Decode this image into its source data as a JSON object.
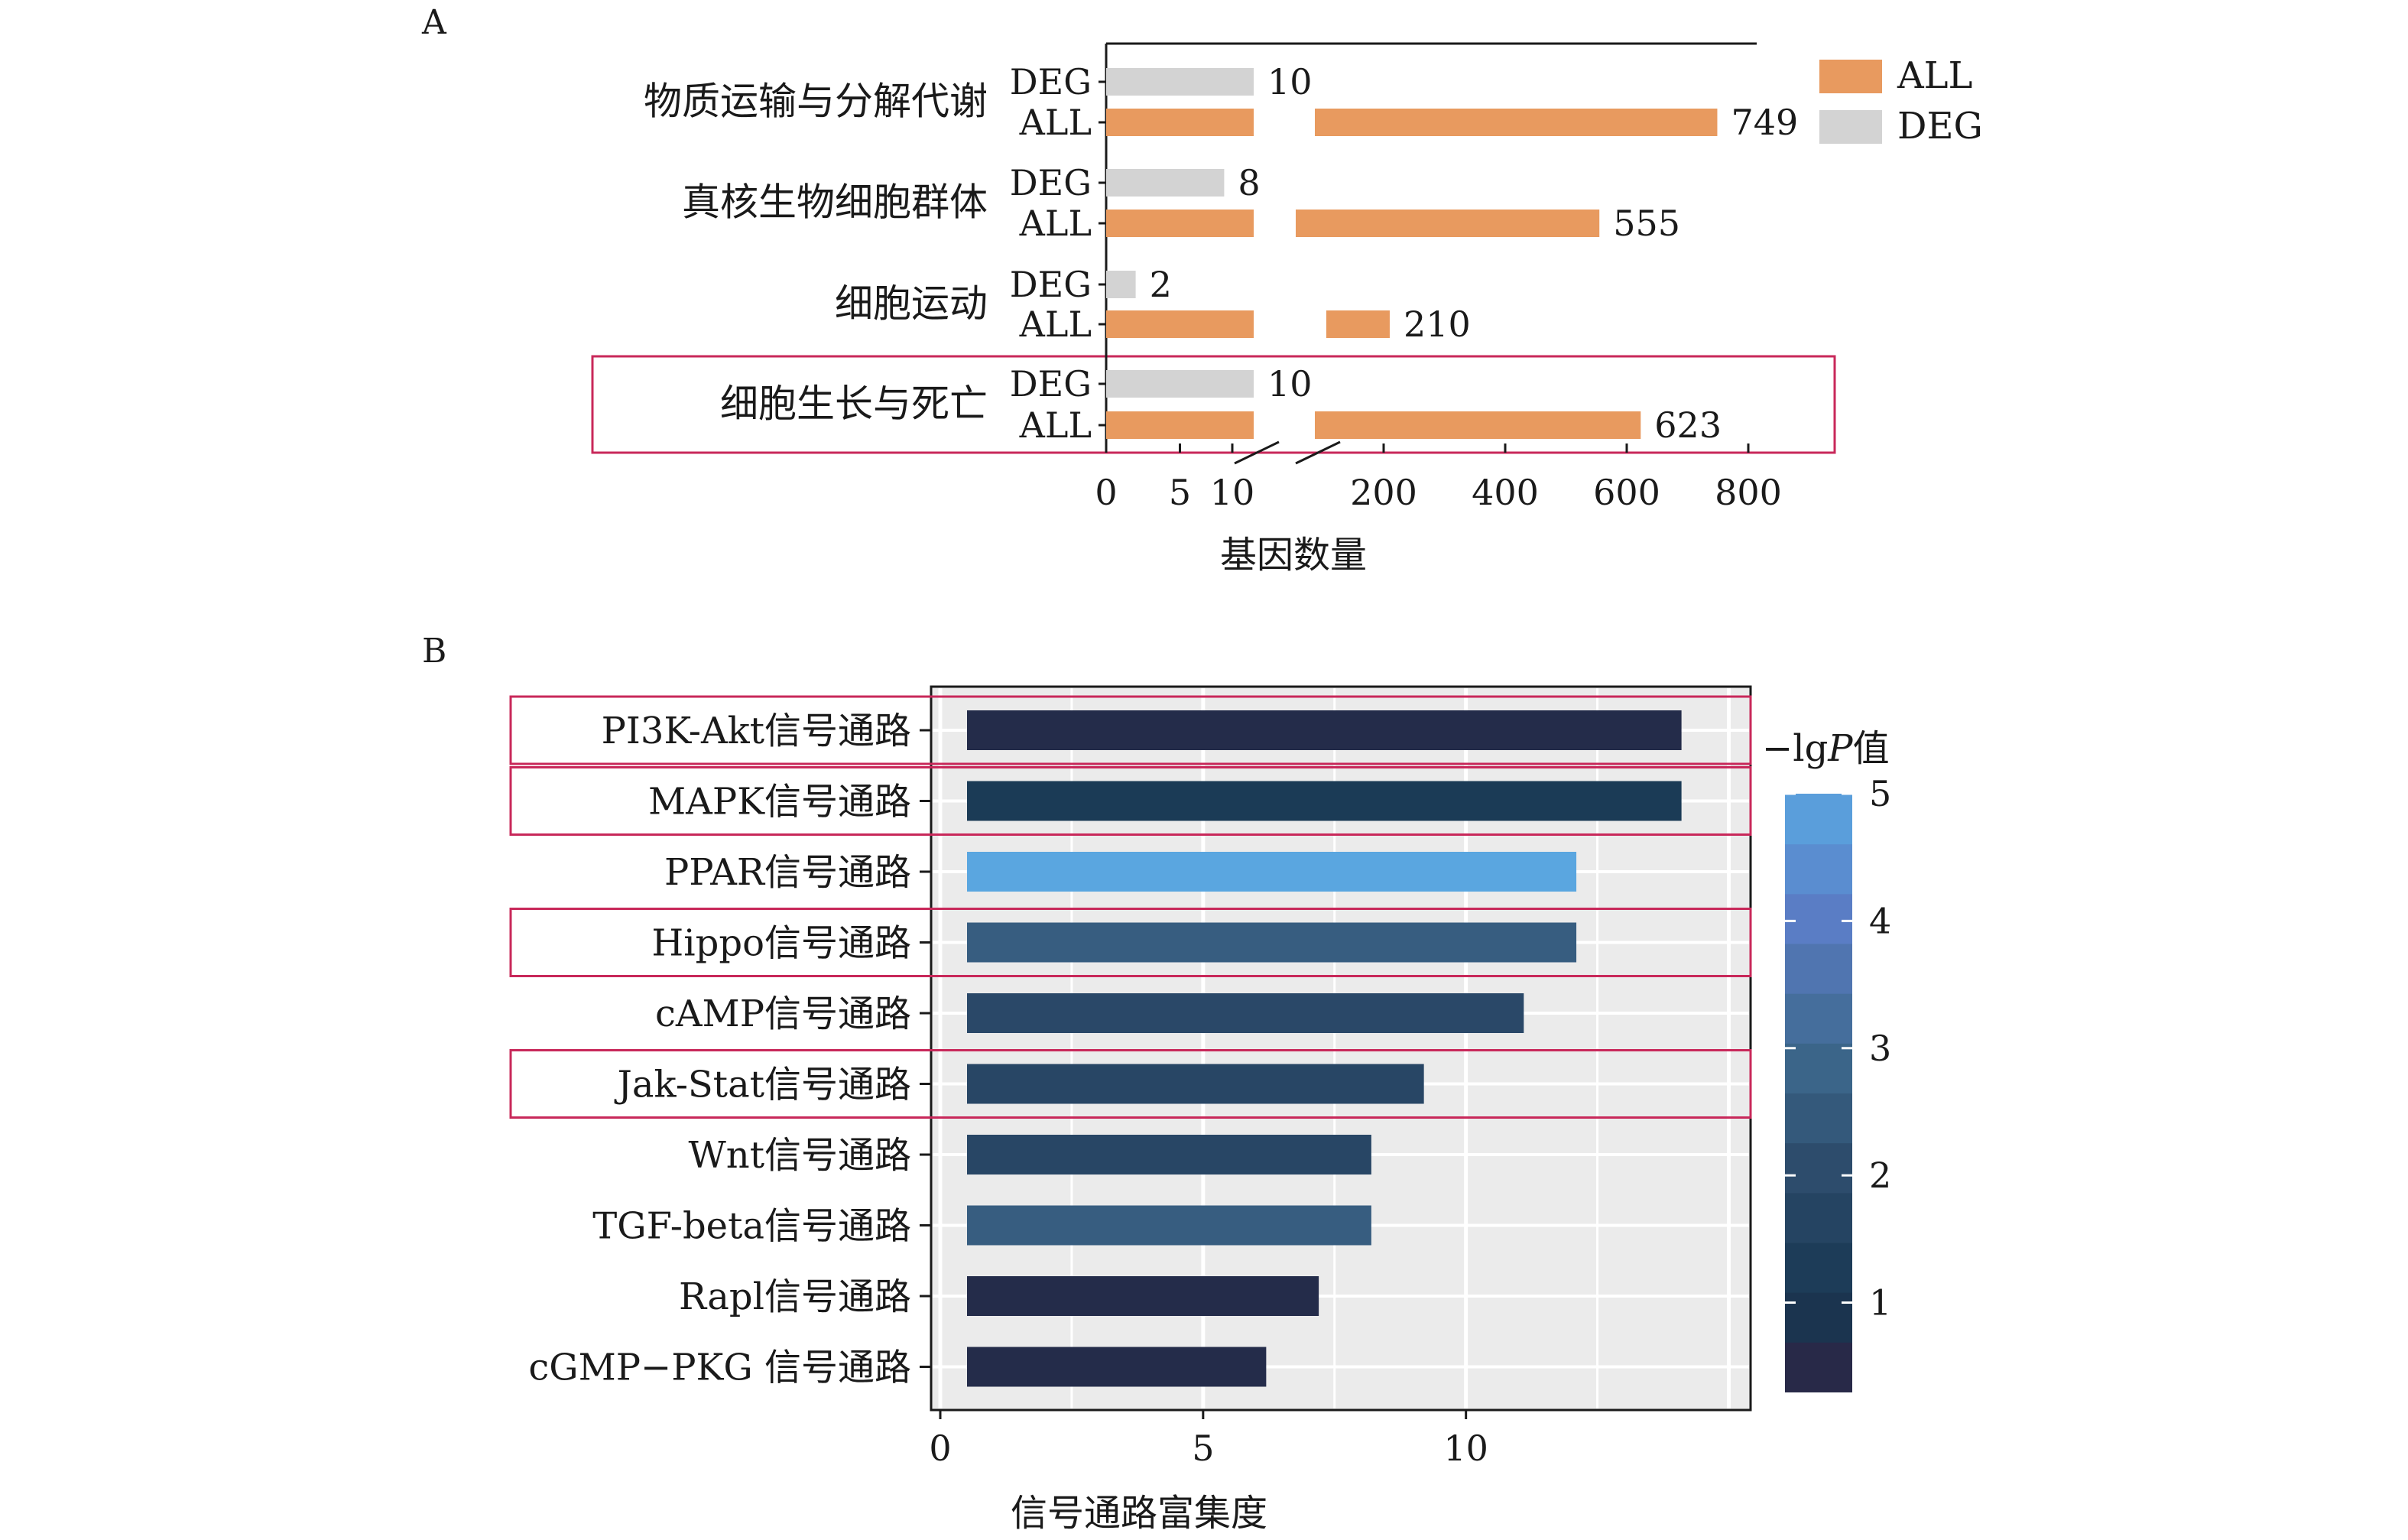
{
  "chart_data": [
    {
      "panel_label": "A",
      "type": "bar",
      "orientation": "horizontal",
      "axis_break": true,
      "categories": [
        "物质运输与分解代谢",
        "真核生物细胞群体",
        "细胞运动",
        "细胞生长与死亡"
      ],
      "row_labels": [
        "DEG",
        "ALL"
      ],
      "series": [
        {
          "name": "ALL",
          "values": [
            749,
            555,
            210,
            623
          ],
          "labels": [
            "749",
            "555",
            "210",
            "623"
          ],
          "color": "#E89A5F"
        },
        {
          "name": "DEG",
          "values": [
            10,
            8,
            2,
            10
          ],
          "labels": [
            "10",
            "8",
            "2",
            "10"
          ],
          "color": "#D3D3D3"
        }
      ],
      "xlabel": "基因数量",
      "x_ticks": [
        "0",
        "5",
        "10",
        "200",
        "400",
        "600",
        "800"
      ],
      "legend": [
        "ALL",
        "DEG"
      ],
      "legend_position": "right",
      "highlighted_category": "细胞生长与死亡"
    },
    {
      "panel_label": "B",
      "type": "bar",
      "orientation": "horizontal",
      "categories": [
        "PI3K-Akt信号通路",
        "MAPK信号通路",
        "PPAR信号通路",
        "Hippo信号通路",
        "cAMP信号通路",
        "Jak-Stat信号通路",
        "Wnt信号通路",
        "TGF-beta信号通路",
        "Rapl信号通路",
        "cGMP−PKG 信号通路"
      ],
      "values": [
        14.1,
        14.1,
        12.1,
        12.1,
        11.1,
        9.2,
        8.2,
        8.2,
        7.2,
        6.2
      ],
      "neg_log_p": [
        0.6,
        1.2,
        5.0,
        2.6,
        1.9,
        1.8,
        1.8,
        2.6,
        0.6,
        0.6
      ],
      "xlabel": "信号通路富集度",
      "x_ticks": [
        "0",
        "5",
        "10"
      ],
      "xlim": [
        0,
        15.5
      ],
      "grid": true,
      "colorbar": {
        "title_prefix": "−lg",
        "title_italic": "P",
        "title_suffix": "值",
        "ticks": [
          "1",
          "2",
          "3",
          "4",
          "5"
        ],
        "range": [
          0.3,
          5.0
        ]
      },
      "highlighted_categories": [
        "PI3K-Akt信号通路",
        "MAPK信号通路",
        "Hippo信号通路",
        "Jak-Stat信号通路"
      ]
    }
  ]
}
